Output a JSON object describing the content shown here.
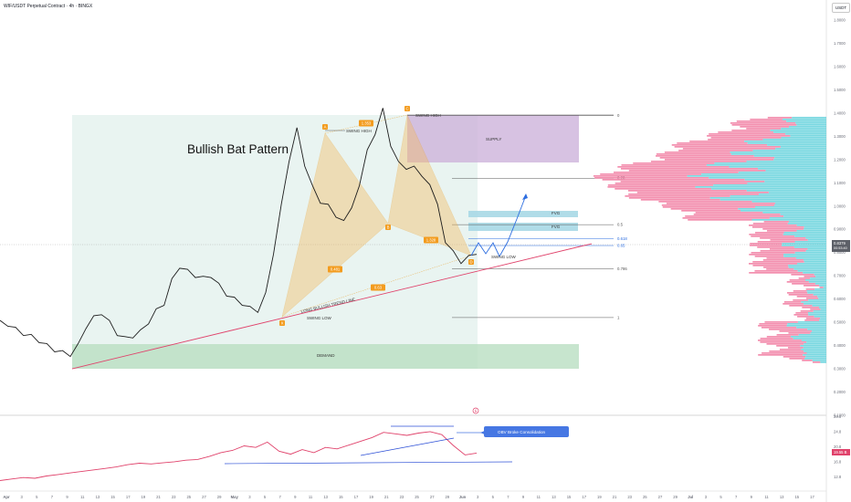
{
  "header": {
    "title": "WIF/USDT Perpetual Contract · 4h · BINGX",
    "currency": "USDT"
  },
  "chart_data": {
    "type": "line",
    "title": "Bullish Bat Pattern",
    "price_axis": {
      "ticks": [
        "1.8000",
        "1.7000",
        "1.6000",
        "1.5000",
        "1.4000",
        "1.3000",
        "1.2000",
        "1.1000",
        "1.0000",
        "0.9000",
        "0.8000",
        "0.7000",
        "0.6000",
        "0.5000",
        "0.4000",
        "0.3000",
        "0.2000",
        "0.1000"
      ],
      "last_price": "0.8379",
      "last_price_sub": "00:53:40"
    },
    "obv_axis": {
      "ticks": [
        "28.8",
        "24.8",
        "20.8",
        "16.8",
        "12.8"
      ],
      "value": "19.55 B"
    },
    "time_axis": [
      "Apr",
      "3",
      "5",
      "7",
      "9",
      "11",
      "13",
      "15",
      "17",
      "19",
      "21",
      "23",
      "25",
      "27",
      "29",
      "May",
      "3",
      "5",
      "7",
      "9",
      "11",
      "13",
      "15",
      "17",
      "19",
      "21",
      "23",
      "25",
      "27",
      "29",
      "Jun",
      "3",
      "5",
      "7",
      "9",
      "11",
      "13",
      "15",
      "17",
      "19",
      "21",
      "23",
      "25",
      "27",
      "29",
      "Jul",
      "3",
      "5",
      "7",
      "9",
      "11",
      "13",
      "15",
      "17"
    ],
    "pattern_points": [
      {
        "label": "X",
        "price": 0.55
      },
      {
        "label": "A",
        "price": 1.33
      },
      {
        "label": "B",
        "price": 0.93
      },
      {
        "label": "C",
        "price": 1.43
      },
      {
        "label": "D",
        "price": 0.76
      }
    ],
    "ratios": [
      "0.481",
      "0.63",
      "1.353",
      "1.328"
    ],
    "fib_levels": [
      {
        "label": "0",
        "price": 1.39
      },
      {
        "label": "0.28",
        "price": 1.12
      },
      {
        "label": "0.5",
        "price": 0.92
      },
      {
        "label": "0.618",
        "price": 0.86
      },
      {
        "label": "0.65",
        "price": 0.83
      },
      {
        "label": "0.786",
        "price": 0.73
      },
      {
        "label": "1",
        "price": 0.52
      }
    ],
    "zones": {
      "supply": "SUPPLY",
      "demand": "DEMAND",
      "fvg": [
        "FVG",
        "FVG"
      ]
    },
    "annotations": [
      "SWING HIGH",
      "SWING HIGH",
      "SWING LOW",
      "SWING LOW",
      "LONG BULLISH TREND LINE",
      "OBV Broke Consolidation"
    ],
    "price_series": [
      0.5,
      0.49,
      0.47,
      0.45,
      0.44,
      0.42,
      0.4,
      0.38,
      0.37,
      0.36,
      0.4,
      0.48,
      0.52,
      0.54,
      0.5,
      0.45,
      0.43,
      0.44,
      0.46,
      0.5,
      0.55,
      0.58,
      0.68,
      0.74,
      0.72,
      0.7,
      0.69,
      0.7,
      0.66,
      0.62,
      0.6,
      0.58,
      0.56,
      0.55,
      0.62,
      0.8,
      1.0,
      1.2,
      1.33,
      1.18,
      1.08,
      1.02,
      1.0,
      0.96,
      0.93,
      1.0,
      1.08,
      1.25,
      1.3,
      1.43,
      1.25,
      1.2,
      1.15,
      1.18,
      1.12,
      1.1,
      1.0,
      0.85,
      0.8,
      0.76,
      0.78,
      0.8
    ],
    "obv_series": [
      12.2,
      12.6,
      13.0,
      12.8,
      13.4,
      13.8,
      14.2,
      14.6,
      15.0,
      15.4,
      15.8,
      16.4,
      16.8,
      16.6,
      16.9,
      17.2,
      17.6,
      17.8,
      18.6,
      19.6,
      20.2,
      21.4,
      21.0,
      22.4,
      20.0,
      19.2,
      20.4,
      19.6,
      21.0,
      20.6,
      21.6,
      22.6,
      23.6,
      25.0,
      24.6,
      24.2,
      24.8,
      25.2,
      24.4,
      21.5,
      19.0,
      19.5
    ]
  }
}
